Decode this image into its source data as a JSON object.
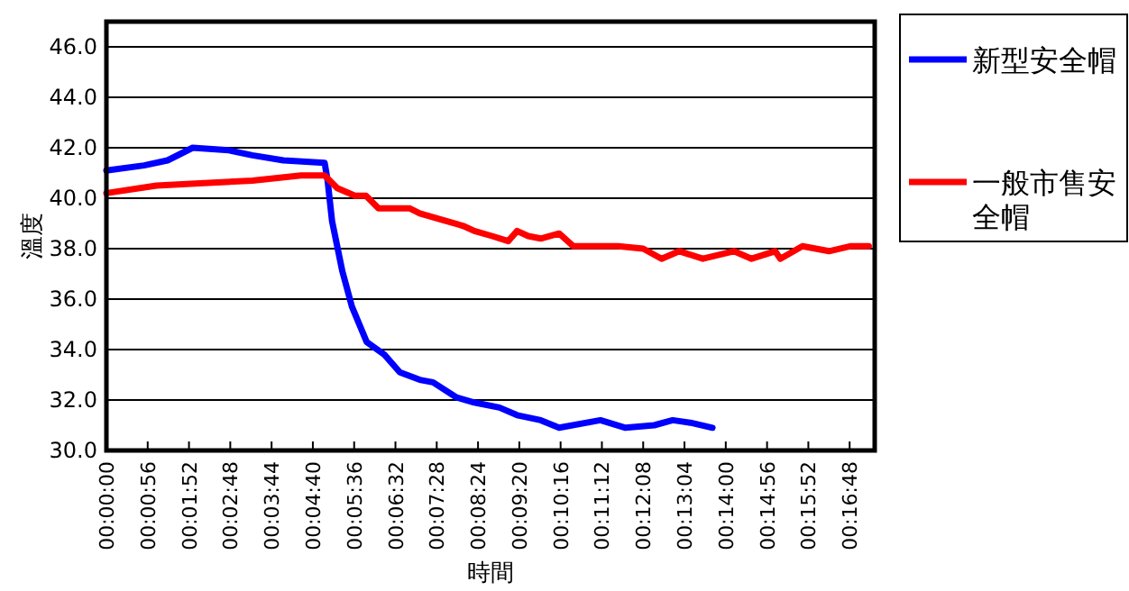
{
  "chart_data": {
    "type": "line",
    "xlabel": "時間",
    "ylabel": "溫度",
    "xlim": [
      0,
      1042
    ],
    "ylim": [
      30,
      47
    ],
    "yticks": [
      {
        "value": 30,
        "label": "30.0"
      },
      {
        "value": 32,
        "label": "32.0"
      },
      {
        "value": 34,
        "label": "34.0"
      },
      {
        "value": 36,
        "label": "36.0"
      },
      {
        "value": 38,
        "label": "38.0"
      },
      {
        "value": 40,
        "label": "40.0"
      },
      {
        "value": 42,
        "label": "42.0"
      },
      {
        "value": 44,
        "label": "44.0"
      },
      {
        "value": 46,
        "label": "46.0"
      }
    ],
    "xticks": [
      {
        "value": 0,
        "label": "00:00:00"
      },
      {
        "value": 56,
        "label": "00:00:56"
      },
      {
        "value": 112,
        "label": "00:01:52"
      },
      {
        "value": 168,
        "label": "00:02:48"
      },
      {
        "value": 224,
        "label": "00:03:44"
      },
      {
        "value": 280,
        "label": "00:04:40"
      },
      {
        "value": 336,
        "label": "00:05:36"
      },
      {
        "value": 392,
        "label": "00:06:32"
      },
      {
        "value": 448,
        "label": "00:07:28"
      },
      {
        "value": 504,
        "label": "00:08:24"
      },
      {
        "value": 560,
        "label": "00:09:20"
      },
      {
        "value": 616,
        "label": "00:10:16"
      },
      {
        "value": 672,
        "label": "00:11:12"
      },
      {
        "value": 728,
        "label": "00:12:08"
      },
      {
        "value": 784,
        "label": "00:13:04"
      },
      {
        "value": 840,
        "label": "00:14:00"
      },
      {
        "value": 896,
        "label": "00:14:56"
      },
      {
        "value": 952,
        "label": "00:15:52"
      },
      {
        "value": 1008,
        "label": "00:16:48"
      }
    ],
    "grid": "y",
    "legend": "top right",
    "line_style": "solid",
    "marker": "none",
    "series": [
      {
        "name": "新型安全帽",
        "color": "#0000ff",
        "x": [
          0,
          51,
          83,
          117,
          166,
          198,
          240,
          296,
          300,
          306,
          320,
          333,
          353,
          377,
          398,
          425,
          443,
          475,
          499,
          533,
          557,
          589,
          614,
          670,
          704,
          743,
          768,
          792,
          822
        ],
        "values": [
          41.1,
          41.3,
          41.5,
          42.0,
          41.9,
          41.7,
          41.5,
          41.4,
          40.7,
          39.1,
          37.1,
          35.7,
          34.3,
          33.8,
          33.1,
          32.8,
          32.7,
          32.1,
          31.9,
          31.7,
          31.4,
          31.2,
          30.9,
          31.2,
          30.9,
          31.0,
          31.2,
          31.1,
          30.9
        ]
      },
      {
        "name": "一般市售安全帽",
        "color": "#ff0000",
        "x": [
          0,
          68,
          132,
          198,
          264,
          296,
          313,
          337,
          352,
          369,
          411,
          425,
          460,
          484,
          499,
          523,
          545,
          557,
          572,
          589,
          614,
          633,
          655,
          694,
          728,
          753,
          777,
          809,
          851,
          875,
          907,
          914,
          944,
          980,
          1010,
          1034
        ],
        "values": [
          40.2,
          40.5,
          40.6,
          40.7,
          40.9,
          40.9,
          40.4,
          40.1,
          40.1,
          39.6,
          39.6,
          39.4,
          39.1,
          38.9,
          38.7,
          38.5,
          38.3,
          38.7,
          38.5,
          38.4,
          38.6,
          38.1,
          38.1,
          38.1,
          38.0,
          37.6,
          37.9,
          37.6,
          37.9,
          37.6,
          37.9,
          37.6,
          38.1,
          37.9,
          38.1,
          38.1
        ]
      }
    ]
  }
}
